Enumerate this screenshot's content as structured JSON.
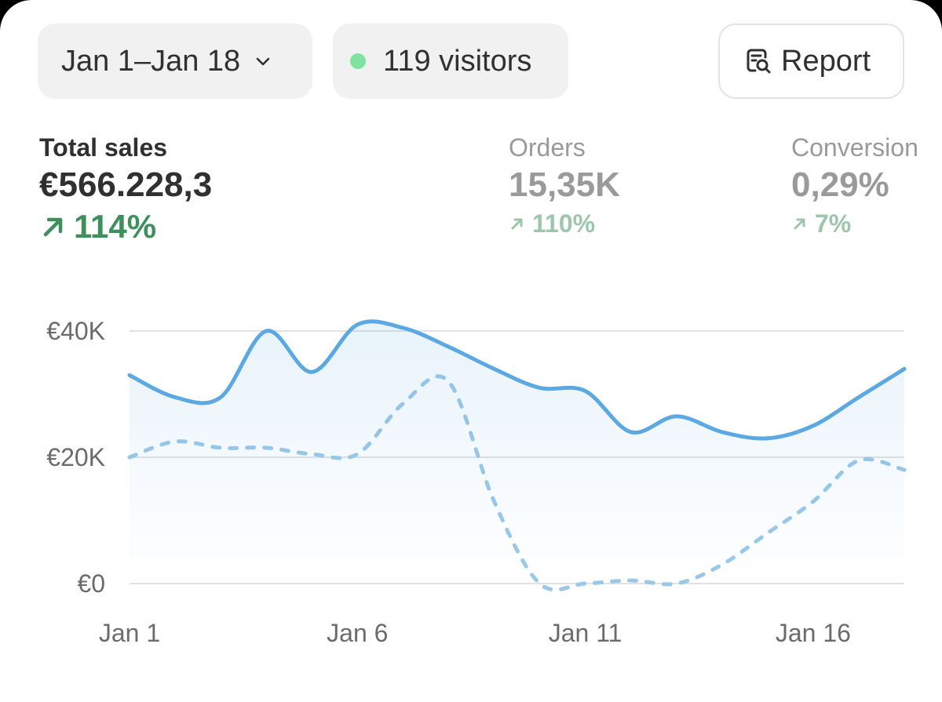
{
  "filters": {
    "date_range": "Jan 1–Jan 18",
    "visitors": "119 visitors",
    "report_label": "Report"
  },
  "metrics": [
    {
      "label": "Total sales",
      "value": "€566.228,3",
      "change": "114%"
    },
    {
      "label": "Orders",
      "value": "15,35K",
      "change": "110%"
    },
    {
      "label": "Conversion",
      "value": "0,29%",
      "change": "7%"
    }
  ],
  "colors": {
    "current_line": "#5ba8e2",
    "previous_line": "#9ac8e8",
    "positive": "#3d8f5c",
    "visitor_dot": "#7fe3a0"
  },
  "icons": [
    "chevron-down-icon",
    "status-dot-icon",
    "report-search-icon",
    "arrow-up-right-icon"
  ],
  "chart_data": {
    "type": "line",
    "x": [
      "Jan 1",
      "Jan 2",
      "Jan 3",
      "Jan 4",
      "Jan 5",
      "Jan 6",
      "Jan 7",
      "Jan 8",
      "Jan 9",
      "Jan 10",
      "Jan 11",
      "Jan 12",
      "Jan 13",
      "Jan 14",
      "Jan 15",
      "Jan 16",
      "Jan 17",
      "Jan 18"
    ],
    "x_tick_labels": [
      "Jan 1",
      "Jan 6",
      "Jan 11",
      "Jan 16"
    ],
    "y_tick_labels": [
      "€40K",
      "€20K",
      "€0"
    ],
    "ylim": [
      0,
      40000
    ],
    "series": [
      {
        "style": "solid",
        "values": [
          33000,
          29500,
          29500,
          40000,
          33500,
          41000,
          40500,
          37500,
          34000,
          31000,
          30500,
          24000,
          26500,
          24000,
          23000,
          25000,
          29500,
          34000
        ]
      },
      {
        "style": "dashed",
        "values": [
          20000,
          22500,
          21500,
          21500,
          20500,
          20500,
          28500,
          32000,
          13000,
          0,
          0,
          500,
          0,
          3000,
          8000,
          13000,
          19500,
          18000
        ]
      }
    ],
    "grid": true,
    "legend": "none"
  }
}
